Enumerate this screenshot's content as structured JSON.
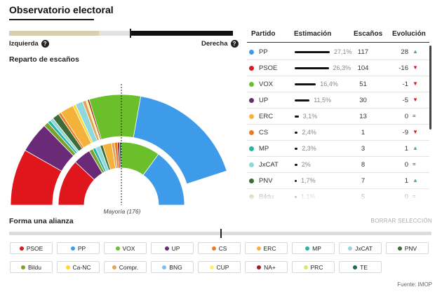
{
  "header": {
    "title": "Observatorio electoral"
  },
  "ideology": {
    "left_label": "Izquierda",
    "right_label": "Derecha",
    "help_icon_glyph": "?",
    "segments": [
      {
        "color": "#d8cfb0",
        "fraction": 0.4
      },
      {
        "color": "#e2e2e2",
        "fraction": 0.14
      },
      {
        "color": "#111111",
        "fraction": 0.46
      }
    ]
  },
  "chamber": {
    "label": "Reparto de escaños",
    "majority_label": "Mayoría (176)",
    "outer_ring": [
      {
        "party": "PSOE",
        "color": "#e0161d",
        "fraction": 0.165
      },
      {
        "party": "UP",
        "color": "#6b2a78",
        "fraction": 0.09
      },
      {
        "party": "Bildu",
        "color": "#7aa02e",
        "fraction": 0.014
      },
      {
        "party": "MP",
        "color": "#26b4a5",
        "fraction": 0.009
      },
      {
        "party": "JxCAT",
        "color": "#8fd9dc",
        "fraction": 0.01
      },
      {
        "party": "PNV",
        "color": "#3f6b35",
        "fraction": 0.02
      },
      {
        "party": "CS",
        "color": "#f07a22",
        "fraction": 0.008
      },
      {
        "party": "ERC",
        "color": "#f4b23b",
        "fraction": 0.04
      },
      {
        "party": "Ca-NC",
        "color": "#ffd62a",
        "fraction": 0.008
      },
      {
        "party": "JxCAT",
        "color": "#8fd9dc",
        "fraction": 0.022
      },
      {
        "party": "Compr.",
        "color": "#e0a35c",
        "fraction": 0.01
      },
      {
        "party": "CUP",
        "color": "#fff06a",
        "fraction": 0.005
      },
      {
        "party": "NA+",
        "color": "#a11c1c",
        "fraction": 0.005
      },
      {
        "party": "VOX",
        "color": "#6bbf2a",
        "fraction": 0.15
      },
      {
        "party": "PP",
        "color": "#3d9be9",
        "fraction": 0.344
      }
    ],
    "inner_ring": [
      {
        "party": "PSOE",
        "color": "#e0161d",
        "fraction": 0.24
      },
      {
        "party": "UP",
        "color": "#6b2a78",
        "fraction": 0.09
      },
      {
        "party": "Bildu",
        "color": "#7aa02e",
        "fraction": 0.02
      },
      {
        "party": "MP",
        "color": "#26b4a5",
        "fraction": 0.015
      },
      {
        "party": "JxCAT",
        "color": "#8fd9dc",
        "fraction": 0.025
      },
      {
        "party": "PNV",
        "color": "#3f6b35",
        "fraction": 0.015
      },
      {
        "party": "ERC",
        "color": "#f4b23b",
        "fraction": 0.045
      },
      {
        "party": "Compr.",
        "color": "#e0a35c",
        "fraction": 0.015
      },
      {
        "party": "CS",
        "color": "#f07a22",
        "fraction": 0.015
      },
      {
        "party": "NA+",
        "color": "#a11c1c",
        "fraction": 0.01
      },
      {
        "party": "TE",
        "color": "#1d6b4a",
        "fraction": 0.01
      },
      {
        "party": "VOX",
        "color": "#6bbf2a",
        "fraction": 0.2
      },
      {
        "party": "PP",
        "color": "#3d9be9",
        "fraction": 0.3
      }
    ]
  },
  "table": {
    "headers": {
      "party": "Partido",
      "estimate": "Estimación",
      "seats": "Escaños",
      "evolution": "Evolución"
    },
    "rows": [
      {
        "party": "PP",
        "color": "#3d9be9",
        "estimate": 27.1,
        "estimate_label": "27,1%",
        "seats": "117",
        "evolution": "28",
        "trend": "up"
      },
      {
        "party": "PSOE",
        "color": "#e0161d",
        "estimate": 26.3,
        "estimate_label": "26,3%",
        "seats": "104",
        "evolution": "-16",
        "trend": "down"
      },
      {
        "party": "VOX",
        "color": "#6bbf2a",
        "estimate": 16.4,
        "estimate_label": "16,4%",
        "seats": "51",
        "evolution": "-1",
        "trend": "down"
      },
      {
        "party": "UP",
        "color": "#6b2a78",
        "estimate": 11.5,
        "estimate_label": "11,5%",
        "seats": "30",
        "evolution": "-5",
        "trend": "down"
      },
      {
        "party": "ERC",
        "color": "#f4b23b",
        "estimate": 3.1,
        "estimate_label": "3,1%",
        "seats": "13",
        "evolution": "0",
        "trend": "equal"
      },
      {
        "party": "CS",
        "color": "#f07a22",
        "estimate": 2.4,
        "estimate_label": "2,4%",
        "seats": "1",
        "evolution": "-9",
        "trend": "down"
      },
      {
        "party": "MP",
        "color": "#26b4a5",
        "estimate": 2.3,
        "estimate_label": "2,3%",
        "seats": "3",
        "evolution": "1",
        "trend": "up"
      },
      {
        "party": "JxCAT",
        "color": "#8fd9dc",
        "estimate": 2.0,
        "estimate_label": "2%",
        "seats": "8",
        "evolution": "0",
        "trend": "equal"
      },
      {
        "party": "PNV",
        "color": "#3f6b35",
        "estimate": 1.7,
        "estimate_label": "1,7%",
        "seats": "7",
        "evolution": "1",
        "trend": "up"
      },
      {
        "party": "Bildu",
        "color": "#7aa02e",
        "estimate": 1.1,
        "estimate_label": "1,1%",
        "seats": "5",
        "evolution": "0",
        "trend": "equal"
      }
    ]
  },
  "alliance": {
    "label": "Forma una alianza",
    "clear_label": "BORRAR SELECCIÓN",
    "chips": [
      {
        "label": "PSOE",
        "color": "#e0161d"
      },
      {
        "label": "PP",
        "color": "#3d9be9"
      },
      {
        "label": "VOX",
        "color": "#6bbf2a"
      },
      {
        "label": "UP",
        "color": "#6b2a78"
      },
      {
        "label": "CS",
        "color": "#f07a22"
      },
      {
        "label": "ERC",
        "color": "#f4b23b"
      },
      {
        "label": "MP",
        "color": "#26b4a5"
      },
      {
        "label": "JxCAT",
        "color": "#8fd9dc"
      },
      {
        "label": "PNV",
        "color": "#3f6b35"
      },
      {
        "label": "Bildu",
        "color": "#7aa02e"
      },
      {
        "label": "Ca-NC",
        "color": "#ffd62a"
      },
      {
        "label": "Compr.",
        "color": "#e0a35c"
      },
      {
        "label": "BNG",
        "color": "#7cc0ee"
      },
      {
        "label": "CUP",
        "color": "#fff06a"
      },
      {
        "label": "NA+",
        "color": "#a11c1c"
      },
      {
        "label": "PRC",
        "color": "#d6e86a"
      },
      {
        "label": "TE",
        "color": "#1d6b4a"
      }
    ]
  },
  "icons": {
    "up": "triangle-up-icon",
    "down": "triangle-down-icon",
    "equal": "equals-icon",
    "help": "help-circle-icon"
  },
  "trend_colors": {
    "up": "#3cb371",
    "down": "#e0161d",
    "equal": "#222222"
  },
  "footer": {
    "source": "Fuente: IMOP"
  }
}
